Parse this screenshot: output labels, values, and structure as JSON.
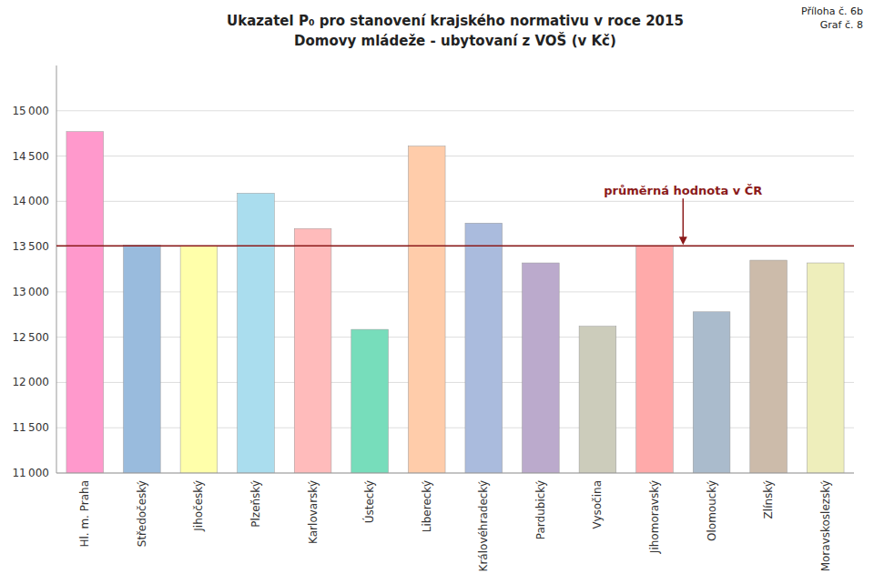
{
  "chart_data": {
    "type": "bar",
    "title": "Ukazatel P₀ pro stanovení krajského normativu v roce 2015",
    "subtitle": "Domovy mládeže - ubytovaní z VOŠ (v Kč)",
    "categories": [
      "Hl. m. Praha",
      "Středočeský",
      "Jihočeský",
      "Plzeňský",
      "Karlovarský",
      "Ústecký",
      "Liberecký",
      "Královéhradecký",
      "Pardubický",
      "Vysočina",
      "Jihomoravský",
      "Olomoucký",
      "Zlínský",
      "Moravskoslezský"
    ],
    "values": [
      14770,
      13517,
      13509,
      14090,
      13700,
      12586,
      14610,
      13760,
      13320,
      12620,
      13509,
      12780,
      13350,
      13320
    ],
    "colors": [
      "#FF99CC",
      "#99BBDD",
      "#FFFFAA",
      "#AADDEE",
      "#FFBBBB",
      "#77DDBB",
      "#FFCCAA",
      "#AABBDD",
      "#BBAACC",
      "#CCCCBB",
      "#FFAAAA",
      "#AABBCC",
      "#CCBBAA",
      "#EEEEBB"
    ],
    "ylim": [
      11000,
      15500
    ],
    "yticks": [
      {
        "value": 11000,
        "label": "11 000"
      },
      {
        "value": 11500,
        "label": "11 500"
      },
      {
        "value": 12000,
        "label": "12 000"
      },
      {
        "value": 12500,
        "label": "12 500"
      },
      {
        "value": 13000,
        "label": "13 000"
      },
      {
        "value": 13500,
        "label": "13 500"
      },
      {
        "value": 14000,
        "label": "14 000"
      },
      {
        "value": 14500,
        "label": "14 500"
      },
      {
        "value": 15000,
        "label": "15 000"
      }
    ],
    "grid": true,
    "annotations": [
      {
        "text": "průměrná hodnota v ČR",
        "y": 13509,
        "color": "#8B1A1A"
      },
      {
        "text": "Příloha č. 6b"
      },
      {
        "text": "Graf č. 8"
      }
    ]
  }
}
